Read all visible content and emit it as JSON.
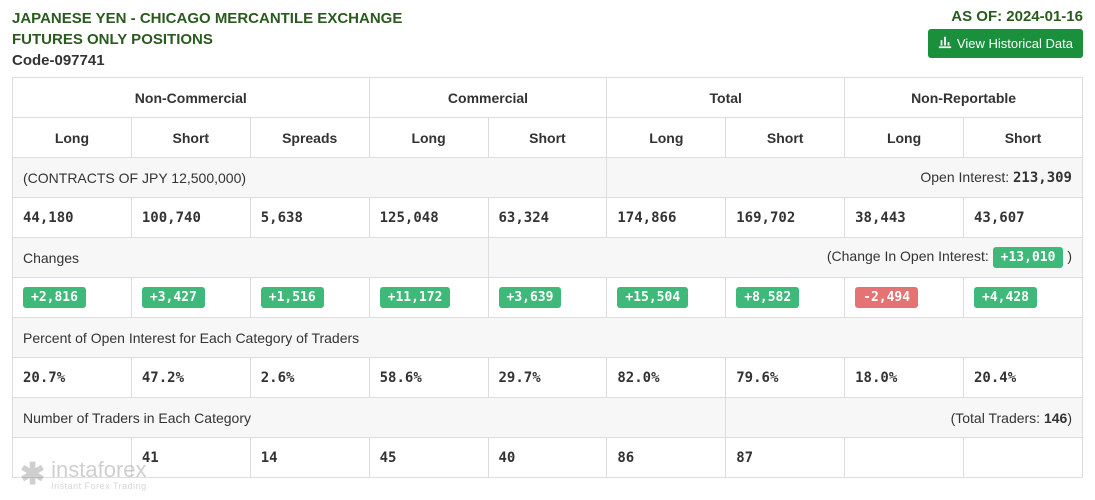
{
  "header": {
    "title_line1": "JAPANESE YEN - CHICAGO MERCANTILE EXCHANGE",
    "title_line2": "FUTURES ONLY POSITIONS",
    "code_line": "Code-097741",
    "as_of_label": "AS OF: 2024-01-16",
    "historical_button": "View Historical Data"
  },
  "table": {
    "groups": [
      {
        "label": "Non-Commercial",
        "span": 3
      },
      {
        "label": "Commercial",
        "span": 2
      },
      {
        "label": "Total",
        "span": 2
      },
      {
        "label": "Non-Reportable",
        "span": 2
      }
    ],
    "columns": [
      "Long",
      "Short",
      "Spreads",
      "Long",
      "Short",
      "Long",
      "Short",
      "Long",
      "Short"
    ],
    "contracts_row": {
      "left": "(CONTRACTS OF JPY 12,500,000)",
      "right_label": "Open Interest: ",
      "right_value": "213,309"
    },
    "values_row": [
      "44,180",
      "100,740",
      "5,638",
      "125,048",
      "63,324",
      "174,866",
      "169,702",
      "38,443",
      "43,607"
    ],
    "changes_row": {
      "left": "Changes",
      "right_label": "(Change In Open Interest: ",
      "right_badge": "+13,010",
      "right_close": " )"
    },
    "change_cells": [
      {
        "text": "+2,816",
        "sign": "pos"
      },
      {
        "text": "+3,427",
        "sign": "pos"
      },
      {
        "text": "+1,516",
        "sign": "pos"
      },
      {
        "text": "+11,172",
        "sign": "pos"
      },
      {
        "text": "+3,639",
        "sign": "pos"
      },
      {
        "text": "+15,504",
        "sign": "pos"
      },
      {
        "text": "+8,582",
        "sign": "pos"
      },
      {
        "text": "-2,494",
        "sign": "neg"
      },
      {
        "text": "+4,428",
        "sign": "pos"
      }
    ],
    "percent_header": "Percent of Open Interest for Each Category of Traders",
    "percent_row": [
      "20.7%",
      "47.2%",
      "2.6%",
      "58.6%",
      "29.7%",
      "82.0%",
      "79.6%",
      "18.0%",
      "20.4%"
    ],
    "traders_header": {
      "left": "Number of Traders in Each Category",
      "right_label": "(Total Traders: ",
      "right_value": "146",
      "right_close": ")"
    },
    "traders_row": [
      "",
      "41",
      "14",
      "45",
      "40",
      "86",
      "87",
      "",
      ""
    ]
  },
  "logo": {
    "brand": "instaforex",
    "tagline": "Instant Forex Trading"
  },
  "style": {
    "colors": {
      "heading_green": "#2b5a1f",
      "button_green": "#1a8f3c",
      "badge_green": "#3fb97a",
      "badge_red": "#e57373",
      "border": "#dddddd",
      "row_alt": "#f7f7f7",
      "text": "#333333",
      "logo_gray": "#888888"
    },
    "fontsize": {
      "title": 15,
      "body": 14,
      "badge": 13
    }
  }
}
